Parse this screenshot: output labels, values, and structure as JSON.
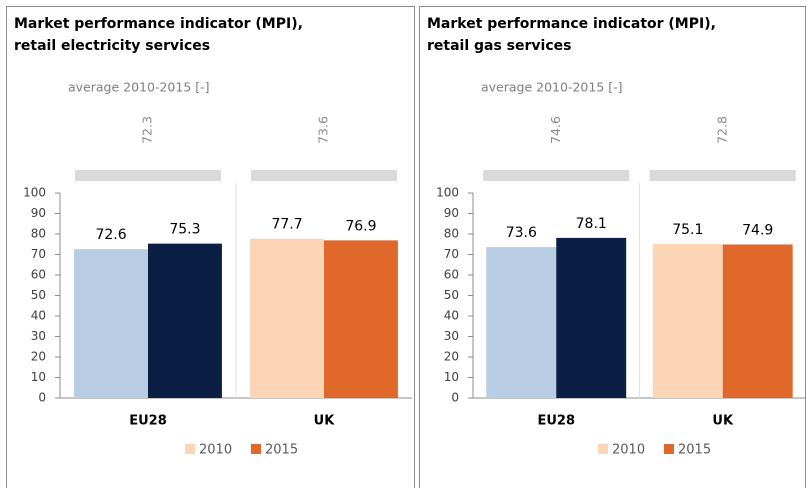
{
  "chart_data": [
    {
      "type": "bar",
      "title": [
        "Market performance indicator (MPI),",
        "retail electricity services"
      ],
      "subtitle": "average 2010-2015 [-]",
      "categories": [
        "EU28",
        "UK"
      ],
      "averages": [
        72.3,
        73.6
      ],
      "series": [
        {
          "name": "2010",
          "color": "#fbd5b5",
          "colors": [
            "#b8cce4",
            "#fbd5b5"
          ],
          "values": [
            72.6,
            77.7
          ]
        },
        {
          "name": "2015",
          "color": "#e0682a",
          "colors": [
            "#0b1f45",
            "#e0682a"
          ],
          "values": [
            75.3,
            76.9
          ]
        }
      ],
      "ylim": [
        0,
        100
      ],
      "yticks": [
        0,
        10,
        20,
        30,
        40,
        50,
        60,
        70,
        80,
        90,
        100
      ]
    },
    {
      "type": "bar",
      "title": [
        "Market performance indicator (MPI),",
        "retail gas services"
      ],
      "subtitle": "average 2010-2015 [-]",
      "categories": [
        "EU28",
        "UK"
      ],
      "averages": [
        74.6,
        72.8
      ],
      "series": [
        {
          "name": "2010",
          "color": "#fbd5b5",
          "colors": [
            "#b8cce4",
            "#fbd5b5"
          ],
          "values": [
            73.6,
            75.1
          ]
        },
        {
          "name": "2015",
          "color": "#e0682a",
          "colors": [
            "#0b1f45",
            "#e0682a"
          ],
          "values": [
            78.1,
            74.9
          ]
        }
      ],
      "ylim": [
        0,
        100
      ],
      "yticks": [
        0,
        10,
        20,
        30,
        40,
        50,
        60,
        70,
        80,
        90,
        100
      ]
    }
  ]
}
